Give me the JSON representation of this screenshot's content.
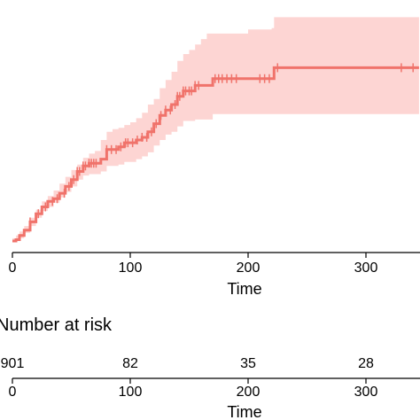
{
  "chart_data": [
    {
      "type": "line",
      "subtype": "cumulative-incidence-step",
      "xlabel": "Time",
      "ylabel": "",
      "xlim": [
        -10,
        345
      ],
      "ylim": [
        0,
        1
      ],
      "x_ticks": [
        0,
        100,
        200,
        300
      ],
      "x_tick_labels": [
        "0",
        "100",
        "200",
        "300"
      ],
      "line_color": "#f0736b",
      "band_color": "#fdd5d3",
      "grid": false,
      "series": [
        {
          "x": [
            0,
            3,
            6,
            10,
            15,
            20,
            25,
            30,
            35,
            40,
            45,
            50,
            55,
            60,
            65,
            70,
            75,
            80,
            85,
            90,
            95,
            100,
            105,
            110,
            115,
            120,
            125,
            130,
            135,
            140,
            145,
            150,
            155,
            160,
            165,
            170,
            200,
            220,
            222,
            345
          ],
          "y": [
            0.0,
            0.005,
            0.02,
            0.04,
            0.07,
            0.1,
            0.125,
            0.145,
            0.155,
            0.175,
            0.2,
            0.225,
            0.255,
            0.275,
            0.285,
            0.285,
            0.3,
            0.335,
            0.335,
            0.345,
            0.36,
            0.36,
            0.37,
            0.38,
            0.4,
            0.43,
            0.46,
            0.48,
            0.5,
            0.53,
            0.55,
            0.55,
            0.57,
            0.57,
            0.57,
            0.595,
            0.595,
            0.595,
            0.635,
            0.635
          ],
          "lower": [
            0.0,
            0.0,
            0.01,
            0.03,
            0.055,
            0.085,
            0.11,
            0.125,
            0.14,
            0.16,
            0.18,
            0.2,
            0.225,
            0.24,
            0.245,
            0.245,
            0.255,
            0.275,
            0.275,
            0.28,
            0.29,
            0.29,
            0.3,
            0.31,
            0.325,
            0.35,
            0.37,
            0.39,
            0.4,
            0.42,
            0.44,
            0.44,
            0.445,
            0.445,
            0.445,
            0.465,
            0.465,
            0.465,
            0.465,
            0.465
          ],
          "upper": [
            0.01,
            0.02,
            0.035,
            0.055,
            0.085,
            0.115,
            0.145,
            0.165,
            0.185,
            0.21,
            0.235,
            0.26,
            0.28,
            0.305,
            0.32,
            0.33,
            0.37,
            0.4,
            0.41,
            0.415,
            0.425,
            0.435,
            0.45,
            0.47,
            0.5,
            0.52,
            0.56,
            0.59,
            0.62,
            0.66,
            0.685,
            0.7,
            0.72,
            0.74,
            0.76,
            0.76,
            0.775,
            0.78,
            0.82,
            0.82
          ],
          "censor_x": [
            15,
            22,
            28,
            34,
            38,
            44,
            48,
            52,
            55,
            57,
            60,
            62,
            65,
            67,
            69,
            71,
            80,
            84,
            88,
            92,
            96,
            98,
            102,
            106,
            110,
            114,
            118,
            122,
            126,
            130,
            134,
            138,
            140,
            142,
            145,
            147,
            150,
            152,
            155,
            158,
            172,
            175,
            178,
            182,
            186,
            190,
            210,
            214,
            218,
            225,
            330,
            340
          ]
        }
      ]
    },
    {
      "type": "table",
      "title": "Number at risk",
      "xlabel": "Time",
      "xlim": [
        -10,
        345
      ],
      "x_ticks": [
        0,
        100,
        200,
        300
      ],
      "x_tick_labels": [
        "0",
        "100",
        "200",
        "300"
      ],
      "values": [
        {
          "x": 0,
          "label": "901"
        },
        {
          "x": 100,
          "label": "82"
        },
        {
          "x": 200,
          "label": "35"
        },
        {
          "x": 300,
          "label": "28"
        }
      ]
    }
  ]
}
